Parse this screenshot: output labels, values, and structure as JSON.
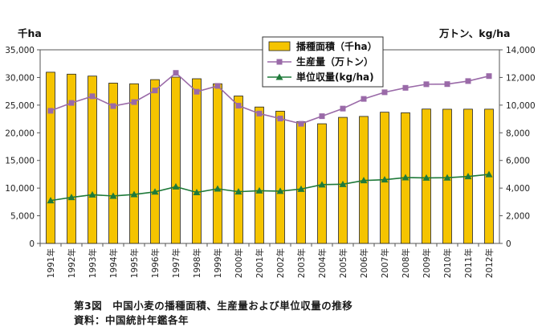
{
  "chart_data": {
    "type": "bar",
    "categories": [
      "1991年",
      "1992年",
      "1993年",
      "1994年",
      "1995年",
      "1996年",
      "1997年",
      "1998年",
      "1999年",
      "2000年",
      "2001年",
      "2002年",
      "2003年",
      "2004年",
      "2005年",
      "2006年",
      "2007年",
      "2008年",
      "2009年",
      "2010年",
      "2011年",
      "2012年"
    ],
    "left_axis": {
      "unit": "千ha",
      "min": 0,
      "max": 35000,
      "ticks": [
        "0",
        "5,000",
        "10,000",
        "15,000",
        "20,000",
        "25,000",
        "30,000",
        "35,000"
      ]
    },
    "right_axis": {
      "unit": "万トン、kg/ha",
      "min": 0,
      "max": 14000,
      "ticks": [
        "0",
        "2,000",
        "4,000",
        "6,000",
        "8,000",
        "10,000",
        "12,000",
        "14,000"
      ]
    },
    "series": [
      {
        "name": "播種面積（千ha）",
        "type": "bar",
        "axis": "left",
        "color": "#f5c400",
        "values": [
          30950,
          30600,
          30250,
          28980,
          28860,
          29610,
          30060,
          29770,
          28860,
          26650,
          24660,
          23910,
          21990,
          21630,
          22790,
          22960,
          23720,
          23620,
          24290,
          24260,
          24270,
          24270
        ]
      },
      {
        "name": "生産量（万トン）",
        "type": "line",
        "axis": "right",
        "color": "#9a6aa8",
        "marker": "square",
        "values": [
          9590,
          10160,
          10640,
          9930,
          10220,
          11060,
          12330,
          10970,
          11390,
          9960,
          9390,
          9030,
          8650,
          9200,
          9750,
          10450,
          10930,
          11250,
          11510,
          11520,
          11740,
          12100
        ]
      },
      {
        "name": "単位収量(kg/ha)",
        "type": "line",
        "axis": "right",
        "color": "#1f7a3a",
        "marker": "triangle",
        "values": [
          3100,
          3330,
          3520,
          3430,
          3540,
          3730,
          4100,
          3690,
          3950,
          3740,
          3810,
          3780,
          3930,
          4250,
          4280,
          4550,
          4610,
          4760,
          4740,
          4750,
          4840,
          4990
        ]
      }
    ]
  },
  "caption": {
    "line1": "第3図　中国小麦の播種面積、生産量および単位収量の推移",
    "line2": "資料：中国統計年鑑各年"
  }
}
